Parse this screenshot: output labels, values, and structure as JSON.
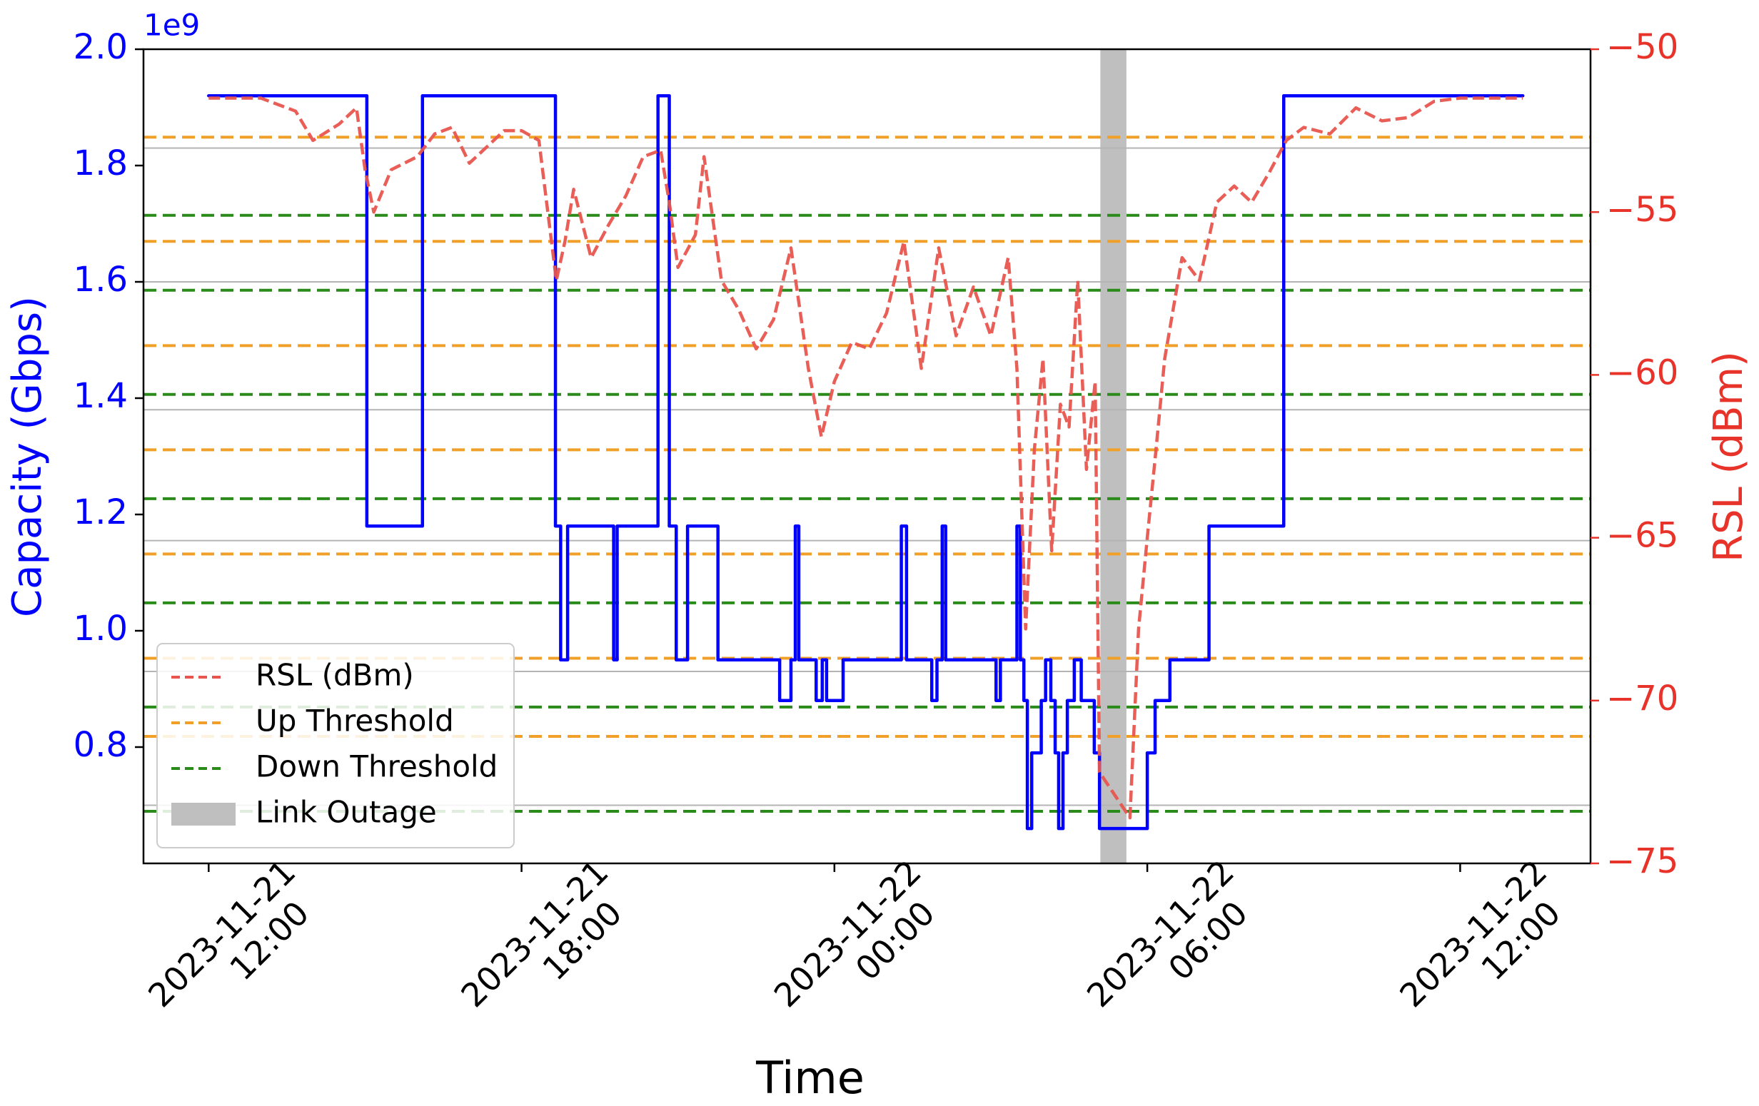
{
  "chart_data": {
    "type": "line",
    "xlabel": "Time",
    "ylabel": "Capacity (Gbps)",
    "y2label": "RSL (dBm)",
    "y_offset_label": "1e9",
    "xlim": [
      "2023-11-21 10:45",
      "2023-11-22 14:30"
    ],
    "xticks": [
      {
        "value": "2023-11-21 12:00",
        "label": [
          "2023-11-21",
          "12:00"
        ]
      },
      {
        "value": "2023-11-21 18:00",
        "label": [
          "2023-11-21",
          "18:00"
        ]
      },
      {
        "value": "2023-11-22 00:00",
        "label": [
          "2023-11-22",
          "00:00"
        ]
      },
      {
        "value": "2023-11-22 06:00",
        "label": [
          "2023-11-22",
          "06:00"
        ]
      },
      {
        "value": "2023-11-22 12:00",
        "label": [
          "2023-11-22",
          "12:00"
        ]
      }
    ],
    "ylim": [
      600000000,
      2000000000
    ],
    "yticks": [
      {
        "value": 800000000,
        "label": "0.8"
      },
      {
        "value": 1000000000,
        "label": "1.0"
      },
      {
        "value": 1200000000,
        "label": "1.2"
      },
      {
        "value": 1400000000,
        "label": "1.4"
      },
      {
        "value": 1600000000,
        "label": "1.6"
      },
      {
        "value": 1800000000,
        "label": "1.8"
      },
      {
        "value": 2000000000,
        "label": "2.0"
      }
    ],
    "y2lim": [
      -75,
      -50
    ],
    "y2ticks": [
      {
        "value": -75,
        "label": "−75"
      },
      {
        "value": -70,
        "label": "−70"
      },
      {
        "value": -65,
        "label": "−65"
      },
      {
        "value": -60,
        "label": "−60"
      },
      {
        "value": -55,
        "label": "−55"
      },
      {
        "value": -50,
        "label": "−50"
      }
    ],
    "series": [
      {
        "color": "#0000ff",
        "step": "post",
        "x": [
          "2023-11-21 12:00",
          "2023-11-21 15:02",
          "2023-11-21 16:06",
          "2023-11-21 18:39",
          "2023-11-21 18:45",
          "2023-11-21 18:53",
          "2023-11-21 19:46",
          "2023-11-21 19:50",
          "2023-11-21 20:37",
          "2023-11-21 20:50",
          "2023-11-21 20:58",
          "2023-11-21 21:11",
          "2023-11-21 21:46",
          "2023-11-21 22:57",
          "2023-11-21 23:10",
          "2023-11-21 23:15",
          "2023-11-21 23:19",
          "2023-11-21 23:39",
          "2023-11-21 23:46",
          "2023-11-21 23:51",
          "2023-11-22 00:10",
          "2023-11-22 01:17",
          "2023-11-22 01:23",
          "2023-11-22 01:52",
          "2023-11-22 01:58",
          "2023-11-22 02:04",
          "2023-11-22 02:08",
          "2023-11-22 03:06",
          "2023-11-22 03:11",
          "2023-11-22 03:30",
          "2023-11-22 03:34",
          "2023-11-22 03:38",
          "2023-11-22 03:42",
          "2023-11-22 03:47",
          "2023-11-22 03:58",
          "2023-11-22 04:03",
          "2023-11-22 04:09",
          "2023-11-22 04:14",
          "2023-11-22 04:18",
          "2023-11-22 04:23",
          "2023-11-22 04:28",
          "2023-11-22 04:36",
          "2023-11-22 04:44",
          "2023-11-22 04:59",
          "2023-11-22 05:05",
          "2023-11-22 06:00",
          "2023-11-22 06:09",
          "2023-11-22 06:26",
          "2023-11-22 07:11",
          "2023-11-22 08:37",
          "2023-11-22 13:12"
        ],
        "values": [
          1920000000,
          1180000000,
          1920000000,
          1180000000,
          950000000,
          1180000000,
          950000000,
          1180000000,
          1920000000,
          1180000000,
          950000000,
          1180000000,
          950000000,
          880000000,
          950000000,
          1180000000,
          950000000,
          880000000,
          950000000,
          880000000,
          950000000,
          1180000000,
          950000000,
          880000000,
          950000000,
          1180000000,
          950000000,
          880000000,
          950000000,
          1180000000,
          950000000,
          880000000,
          660000000,
          790000000,
          880000000,
          950000000,
          880000000,
          790000000,
          660000000,
          790000000,
          880000000,
          950000000,
          880000000,
          790000000,
          660000000,
          790000000,
          880000000,
          950000000,
          1180000000,
          1920000000,
          1920000000
        ]
      },
      {
        "name": "RSL (dBm)",
        "color": "#e8554e",
        "axis": "y2",
        "dash": true,
        "x": [
          "2023-11-21 12:00",
          "2023-11-21 13:00",
          "2023-11-21 13:40",
          "2023-11-21 14:00",
          "2023-11-21 14:30",
          "2023-11-21 14:50",
          "2023-11-21 15:00",
          "2023-11-21 15:10",
          "2023-11-21 15:30",
          "2023-11-21 16:00",
          "2023-11-21 16:20",
          "2023-11-21 16:40",
          "2023-11-21 17:00",
          "2023-11-21 17:20",
          "2023-11-21 17:40",
          "2023-11-21 18:00",
          "2023-11-21 18:20",
          "2023-11-21 18:40",
          "2023-11-21 18:50",
          "2023-11-21 19:00",
          "2023-11-21 19:20",
          "2023-11-21 19:40",
          "2023-11-21 20:00",
          "2023-11-21 20:20",
          "2023-11-21 20:40",
          "2023-11-21 20:50",
          "2023-11-21 21:00",
          "2023-11-21 21:20",
          "2023-11-21 21:30",
          "2023-11-21 21:50",
          "2023-11-21 22:10",
          "2023-11-21 22:30",
          "2023-11-21 22:50",
          "2023-11-21 23:10",
          "2023-11-21 23:30",
          "2023-11-21 23:45",
          "2023-11-22 00:00",
          "2023-11-22 00:20",
          "2023-11-22 00:40",
          "2023-11-22 01:00",
          "2023-11-22 01:20",
          "2023-11-22 01:40",
          "2023-11-22 02:00",
          "2023-11-22 02:20",
          "2023-11-22 02:40",
          "2023-11-22 03:00",
          "2023-11-22 03:20",
          "2023-11-22 03:30",
          "2023-11-22 03:40",
          "2023-11-22 03:50",
          "2023-11-22 04:00",
          "2023-11-22 04:10",
          "2023-11-22 04:20",
          "2023-11-22 04:30",
          "2023-11-22 04:40",
          "2023-11-22 04:50",
          "2023-11-22 05:00",
          "2023-11-22 05:05",
          "2023-11-22 05:40",
          "2023-11-22 05:50",
          "2023-11-22 06:00",
          "2023-11-22 06:10",
          "2023-11-22 06:20",
          "2023-11-22 06:40",
          "2023-11-22 07:00",
          "2023-11-22 07:20",
          "2023-11-22 07:40",
          "2023-11-22 08:00",
          "2023-11-22 08:20",
          "2023-11-22 08:40",
          "2023-11-22 09:00",
          "2023-11-22 09:30",
          "2023-11-22 10:00",
          "2023-11-22 10:30",
          "2023-11-22 11:00",
          "2023-11-22 11:30",
          "2023-11-22 12:00",
          "2023-11-22 13:12"
        ],
        "values": [
          -51.5,
          -51.5,
          -51.9,
          -52.8,
          -52.3,
          -51.8,
          -53.7,
          -55.0,
          -53.7,
          -53.3,
          -52.6,
          -52.4,
          -53.5,
          -53.0,
          -52.5,
          -52.5,
          -52.8,
          -57.1,
          -55.9,
          -54.3,
          -56.4,
          -55.4,
          -54.5,
          -53.3,
          -53.1,
          -54.7,
          -56.7,
          -55.7,
          -53.3,
          -57.1,
          -58.0,
          -59.2,
          -58.3,
          -56.1,
          -59.8,
          -61.9,
          -60.2,
          -59.0,
          -59.2,
          -58.1,
          -55.9,
          -59.8,
          -56.1,
          -58.8,
          -57.3,
          -58.8,
          -56.4,
          -59.8,
          -67.8,
          -62.3,
          -59.5,
          -65.4,
          -60.9,
          -61.6,
          -57.1,
          -62.9,
          -60.2,
          -72.2,
          -73.6,
          -67.8,
          -65.0,
          -62.3,
          -59.5,
          -56.4,
          -57.1,
          -54.7,
          -54.2,
          -54.7,
          -53.8,
          -52.8,
          -52.4,
          -52.6,
          -51.8,
          -52.2,
          -52.1,
          -51.6,
          -51.5,
          -51.5
        ]
      }
    ],
    "thresholds": [
      {
        "name": "Up Threshold",
        "color": "#f0a028",
        "axis": "y2",
        "values": [
          -52.7,
          -55.9,
          -59.1,
          -62.3,
          -65.5,
          -68.7,
          -71.1
        ]
      },
      {
        "name": "Down Threshold",
        "color": "#2a8a1a",
        "axis": "y2",
        "values": [
          -55.1,
          -57.4,
          -60.6,
          -63.8,
          -67.0,
          -70.2,
          -73.4
        ]
      }
    ],
    "hlines": {
      "color": "#b4b4b4",
      "values": [
        1830000000,
        1600000000,
        1380000000,
        1155000000,
        930000000,
        700000000
      ]
    },
    "outage": {
      "name": "Link Outage",
      "color": "#bfbfbf",
      "start": "2023-11-22 05:06",
      "end": "2023-11-22 05:36"
    },
    "legend": "lower left"
  }
}
